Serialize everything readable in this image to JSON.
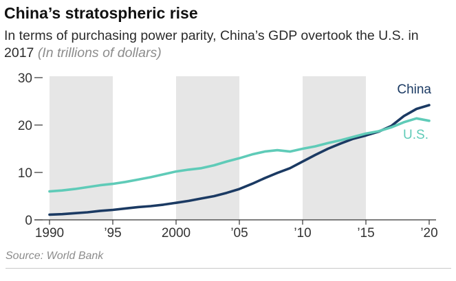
{
  "header": {
    "title": "China’s stratospheric rise",
    "subtitle": "In terms of purchasing power parity, China’s GDP overtook the U.S. in 2017",
    "units": "(In trillions of dollars)"
  },
  "footer": {
    "source": "Source: World Bank"
  },
  "chart_data": {
    "type": "line",
    "title": "China’s stratospheric rise",
    "xlabel": "",
    "ylabel": "",
    "xlim": [
      1990,
      2020
    ],
    "ylim": [
      0,
      30
    ],
    "yticks": [
      0,
      10,
      20,
      30
    ],
    "xticks": [
      {
        "value": 1990,
        "label": "1990"
      },
      {
        "value": 1995,
        "label": "’95"
      },
      {
        "value": 2000,
        "label": "2000"
      },
      {
        "value": 2005,
        "label": "’05"
      },
      {
        "value": 2010,
        "label": "’10"
      },
      {
        "value": 2015,
        "label": "’15"
      },
      {
        "value": 2020,
        "label": "’20"
      }
    ],
    "shaded_periods": [
      [
        1990,
        1995
      ],
      [
        2000,
        2005
      ],
      [
        2010,
        2015
      ]
    ],
    "grid": false,
    "legend": "direct labels at right end of lines",
    "x": [
      1990,
      1991,
      1992,
      1993,
      1994,
      1995,
      1996,
      1997,
      1998,
      1999,
      2000,
      2001,
      2002,
      2003,
      2004,
      2005,
      2006,
      2007,
      2008,
      2009,
      2010,
      2011,
      2012,
      2013,
      2014,
      2015,
      2016,
      2017,
      2018,
      2019,
      2020
    ],
    "series": [
      {
        "name": "China",
        "color": "#1b3a63",
        "values": [
          1.1,
          1.2,
          1.4,
          1.6,
          1.9,
          2.1,
          2.4,
          2.7,
          2.9,
          3.2,
          3.6,
          4.0,
          4.5,
          5.0,
          5.7,
          6.5,
          7.6,
          8.8,
          9.9,
          10.9,
          12.3,
          13.7,
          15.0,
          16.1,
          17.1,
          17.8,
          18.6,
          19.8,
          21.9,
          23.4,
          24.2
        ]
      },
      {
        "name": "U.S.",
        "color": "#5fcbb8",
        "values": [
          6.0,
          6.2,
          6.5,
          6.9,
          7.3,
          7.6,
          8.0,
          8.5,
          9.0,
          9.6,
          10.2,
          10.6,
          10.9,
          11.5,
          12.3,
          13.0,
          13.8,
          14.4,
          14.7,
          14.4,
          15.0,
          15.5,
          16.2,
          16.8,
          17.5,
          18.2,
          18.7,
          19.5,
          20.6,
          21.4,
          20.9
        ]
      }
    ]
  }
}
